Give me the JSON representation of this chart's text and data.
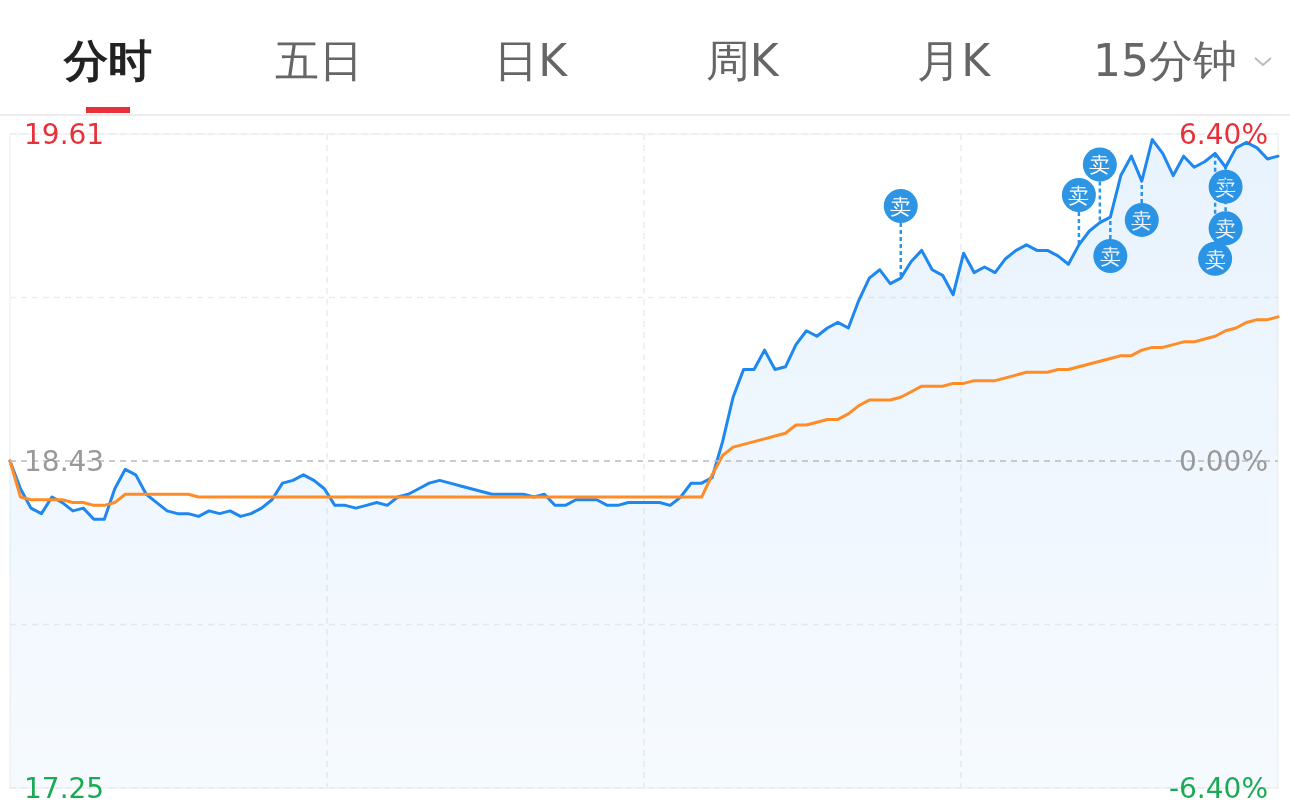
{
  "chart_data": [
    {
      "type": "other",
      "annotations": [
        "分时",
        "五日",
        "日K",
        "周K",
        "月K",
        "15分钟"
      ]
    },
    {
      "type": "line",
      "grid": true,
      "categories": [
        null,
        null,
        null,
        null,
        null,
        null,
        null,
        null,
        null,
        null,
        null,
        null,
        null,
        null,
        null,
        null,
        null,
        null,
        null,
        null,
        null,
        null,
        null,
        null,
        null,
        null,
        null,
        null,
        null,
        null,
        null,
        null,
        null,
        null,
        null,
        null,
        null,
        null,
        null,
        null,
        null,
        null,
        null,
        null,
        null,
        null,
        null,
        null,
        null,
        null,
        null,
        null,
        null,
        null,
        null,
        null,
        null,
        null,
        null,
        null,
        null,
        null,
        null,
        null,
        null,
        null,
        null,
        null,
        null,
        null,
        null,
        null,
        null,
        null,
        null,
        null,
        null,
        null,
        null,
        null,
        null,
        null,
        null,
        null,
        null,
        null,
        null,
        null,
        null,
        null,
        null,
        null,
        null,
        null,
        null,
        null,
        null,
        null,
        null,
        null,
        null,
        null,
        null,
        null,
        null,
        null,
        null,
        null,
        null,
        null,
        null,
        null,
        null,
        null,
        null,
        null,
        null,
        null,
        null,
        null,
        null,
        null
      ],
      "ylim": [
        17.25,
        19.61
      ],
      "yticks": [
        17.25,
        {
          "value": 17.84,
          "label": null
        },
        18.43,
        {
          "value": 19.02,
          "label": null
        },
        19.61
      ],
      "y2lim": [
        -6.4,
        6.4
      ],
      "y2ticks": [
        {
          "value": -6.4,
          "label": "-6.40%"
        },
        {
          "value": 0,
          "label": "0.00%"
        },
        {
          "value": 6.4,
          "label": "6.40%"
        }
      ],
      "ref_lines": [
        {
          "axis": "y",
          "value": 18.43,
          "color": "#b8bcc4",
          "line_style": "dashed"
        }
      ],
      "series": [
        {
          "type": "area",
          "color": "#1f87f0",
          "values": [
            18.43,
            18.33,
            18.26,
            18.24,
            18.3,
            18.28,
            18.25,
            18.26,
            18.22,
            18.22,
            18.33,
            18.4,
            18.38,
            18.31,
            18.28,
            18.25,
            18.24,
            18.24,
            18.23,
            18.25,
            18.24,
            18.25,
            18.23,
            18.24,
            18.26,
            18.29,
            18.35,
            18.36,
            18.38,
            18.36,
            18.33,
            18.27,
            18.27,
            18.26,
            18.27,
            18.28,
            18.27,
            18.3,
            18.31,
            18.33,
            18.35,
            18.36,
            18.35,
            18.34,
            18.33,
            18.32,
            18.31,
            18.31,
            18.31,
            18.31,
            18.3,
            18.31,
            18.27,
            18.27,
            18.29,
            18.29,
            18.29,
            18.27,
            18.27,
            18.28,
            18.28,
            18.28,
            18.28,
            18.27,
            18.3,
            18.35,
            18.35,
            18.37,
            18.5,
            18.66,
            18.76,
            18.76,
            18.83,
            18.76,
            18.77,
            18.85,
            18.9,
            18.88,
            18.91,
            18.93,
            18.91,
            19.01,
            19.09,
            19.12,
            19.07,
            19.09,
            19.15,
            19.19,
            19.12,
            19.1,
            19.03,
            19.18,
            19.11,
            19.13,
            19.11,
            19.16,
            19.19,
            19.21,
            19.19,
            19.19,
            19.17,
            19.14,
            19.21,
            19.26,
            19.29,
            19.31,
            19.46,
            19.53,
            19.44,
            19.59,
            19.54,
            19.46,
            19.53,
            19.49,
            19.51,
            19.54,
            19.49,
            19.56,
            19.58,
            19.56,
            19.52,
            19.53
          ]
        },
        {
          "type": "line",
          "color": "#ff8c26",
          "values": [
            18.43,
            18.3,
            18.29,
            18.29,
            18.29,
            18.29,
            18.28,
            18.28,
            18.27,
            18.27,
            18.28,
            18.31,
            18.31,
            18.31,
            18.31,
            18.31,
            18.31,
            18.31,
            18.3,
            18.3,
            18.3,
            18.3,
            18.3,
            18.3,
            18.3,
            18.3,
            18.3,
            18.3,
            18.3,
            18.3,
            18.3,
            18.3,
            18.3,
            18.3,
            18.3,
            18.3,
            18.3,
            18.3,
            18.3,
            18.3,
            18.3,
            18.3,
            18.3,
            18.3,
            18.3,
            18.3,
            18.3,
            18.3,
            18.3,
            18.3,
            18.3,
            18.3,
            18.3,
            18.3,
            18.3,
            18.3,
            18.3,
            18.3,
            18.3,
            18.3,
            18.3,
            18.3,
            18.3,
            18.3,
            18.3,
            18.3,
            18.3,
            18.38,
            18.45,
            18.48,
            18.49,
            18.5,
            18.51,
            18.52,
            18.53,
            18.56,
            18.56,
            18.57,
            18.58,
            18.58,
            18.6,
            18.63,
            18.65,
            18.65,
            18.65,
            18.66,
            18.68,
            18.7,
            18.7,
            18.7,
            18.71,
            18.71,
            18.72,
            18.72,
            18.72,
            18.73,
            18.74,
            18.75,
            18.75,
            18.75,
            18.76,
            18.76,
            18.77,
            18.78,
            18.79,
            18.8,
            18.81,
            18.81,
            18.83,
            18.84,
            18.84,
            18.85,
            18.86,
            18.86,
            18.87,
            18.88,
            18.9,
            18.91,
            18.93,
            18.94,
            18.94,
            18.95
          ]
        },
        {
          "type": "scatter",
          "marker": "circle",
          "color": "#2d95e3",
          "values": [
            null,
            null,
            null,
            null,
            null,
            null,
            null,
            null,
            null,
            null,
            null,
            null,
            null,
            null,
            null,
            null,
            null,
            null,
            null,
            null,
            null,
            null,
            null,
            null,
            null,
            null,
            null,
            null,
            null,
            null,
            null,
            null,
            null,
            null,
            null,
            null,
            null,
            null,
            null,
            null,
            null,
            null,
            null,
            null,
            null,
            null,
            null,
            null,
            null,
            null,
            null,
            null,
            null,
            null,
            null,
            null,
            null,
            null,
            null,
            null,
            null,
            null,
            null,
            null,
            null,
            null,
            null,
            null,
            null,
            null,
            null,
            null,
            null,
            null,
            null,
            null,
            null,
            null,
            null,
            null,
            null,
            null,
            null,
            null,
            null,
            19.35,
            null,
            null,
            null,
            null,
            null,
            null,
            null,
            null,
            null,
            null,
            null,
            null,
            null,
            null,
            null,
            null,
            19.39,
            null,
            19.5,
            19.17,
            null,
            null,
            19.3,
            null,
            null,
            null,
            null,
            null,
            null,
            19.16,
            19.42,
            null,
            null,
            null,
            null,
            null
          ],
          "value_labels": [
            null,
            null,
            null,
            null,
            null,
            null,
            null,
            null,
            null,
            null,
            null,
            null,
            null,
            null,
            null,
            null,
            null,
            null,
            null,
            null,
            null,
            null,
            null,
            null,
            null,
            null,
            null,
            null,
            null,
            null,
            null,
            null,
            null,
            null,
            null,
            null,
            null,
            null,
            null,
            null,
            null,
            null,
            null,
            null,
            null,
            null,
            null,
            null,
            null,
            null,
            null,
            null,
            null,
            null,
            null,
            null,
            null,
            null,
            null,
            null,
            null,
            null,
            null,
            null,
            null,
            null,
            null,
            null,
            null,
            null,
            null,
            null,
            null,
            null,
            null,
            null,
            null,
            null,
            null,
            null,
            null,
            null,
            null,
            null,
            null,
            "卖",
            null,
            null,
            null,
            null,
            null,
            null,
            null,
            null,
            null,
            null,
            null,
            null,
            null,
            null,
            null,
            null,
            "卖",
            null,
            "卖",
            "卖",
            null,
            null,
            "卖",
            null,
            null,
            null,
            null,
            null,
            null,
            "卖",
            "卖",
            null,
            null,
            null,
            null,
            null
          ]
        },
        {
          "type": "scatter",
          "marker": "circle",
          "color": "#2d95e3",
          "values": [
            null,
            null,
            null,
            null,
            null,
            null,
            null,
            null,
            null,
            null,
            null,
            null,
            null,
            null,
            null,
            null,
            null,
            null,
            null,
            null,
            null,
            null,
            null,
            null,
            null,
            null,
            null,
            null,
            null,
            null,
            null,
            null,
            null,
            null,
            null,
            null,
            null,
            null,
            null,
            null,
            null,
            null,
            null,
            null,
            null,
            null,
            null,
            null,
            null,
            null,
            null,
            null,
            null,
            null,
            null,
            null,
            null,
            null,
            null,
            null,
            null,
            null,
            null,
            null,
            null,
            null,
            null,
            null,
            null,
            null,
            null,
            null,
            null,
            null,
            null,
            null,
            null,
            null,
            null,
            null,
            null,
            null,
            null,
            null,
            null,
            null,
            null,
            null,
            null,
            null,
            null,
            null,
            null,
            null,
            null,
            null,
            null,
            null,
            null,
            null,
            null,
            null,
            null,
            null,
            null,
            null,
            null,
            null,
            null,
            null,
            null,
            null,
            null,
            null,
            null,
            null,
            19.27,
            null,
            null,
            null,
            null,
            null
          ],
          "value_labels": [
            null,
            null,
            null,
            null,
            null,
            null,
            null,
            null,
            null,
            null,
            null,
            null,
            null,
            null,
            null,
            null,
            null,
            null,
            null,
            null,
            null,
            null,
            null,
            null,
            null,
            null,
            null,
            null,
            null,
            null,
            null,
            null,
            null,
            null,
            null,
            null,
            null,
            null,
            null,
            null,
            null,
            null,
            null,
            null,
            null,
            null,
            null,
            null,
            null,
            null,
            null,
            null,
            null,
            null,
            null,
            null,
            null,
            null,
            null,
            null,
            null,
            null,
            null,
            null,
            null,
            null,
            null,
            null,
            null,
            null,
            null,
            null,
            null,
            null,
            null,
            null,
            null,
            null,
            null,
            null,
            null,
            null,
            null,
            null,
            null,
            null,
            null,
            null,
            null,
            null,
            null,
            null,
            null,
            null,
            null,
            null,
            null,
            null,
            null,
            null,
            null,
            null,
            null,
            null,
            null,
            null,
            null,
            null,
            null,
            null,
            null,
            null,
            null,
            null,
            null,
            null,
            "卖",
            null,
            null,
            null,
            null,
            null
          ]
        }
      ]
    }
  ]
}
